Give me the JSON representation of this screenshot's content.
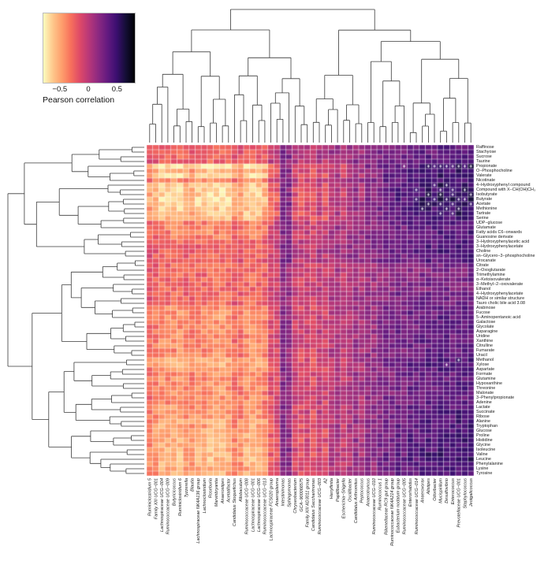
{
  "figure": {
    "legend": {
      "title": "Pearson correlation",
      "ticks": [
        "−0.5",
        "0",
        "0.5"
      ],
      "tick_values": [
        -0.5,
        0,
        0.5
      ]
    },
    "colors": {
      "background": "#ffffff",
      "dendrogram_line": "#3a3a3a",
      "label_text": "#1a1a1a",
      "significance_mark": "#ffffff"
    }
  },
  "chart_data": {
    "type": "heatmap",
    "title": "",
    "legend_label": "Pearson correlation",
    "value_range": [
      -0.8,
      0.8
    ],
    "colormap": {
      "name": "magma-reversed",
      "stops": [
        "#000004",
        "#140e36",
        "#3b0f70",
        "#641a80",
        "#8c2981",
        "#b73779",
        "#de4968",
        "#f7705c",
        "#fe9f6d",
        "#fec98d",
        "#fcfdbf"
      ]
    },
    "rows": [
      "Raffinose",
      "Stachyose",
      "Sucrose",
      "Taurine",
      "Propionate",
      "O−Phosphocholine",
      "Valerate",
      "Nicotinate",
      "4−Hydroxyphenyl compound",
      "Compound with X−CH(OH)CH₃",
      "Isobutyrate",
      "Butyrate",
      "Acetate",
      "Methionine",
      "Tartrate",
      "Serine",
      "UDP−glucose",
      "Glutamate",
      "Fatty acids C6−onwards",
      "Guanosine derivate",
      "3−Hydroxyphenylacetic acid",
      "3−Hydroxyphenylacetate",
      "Choline",
      "sn−Glycero−3−phosphocholine",
      "Urocanate",
      "Citrate",
      "2−Oxoglutarate",
      "Trimethylamine",
      "α−Ketoisovalerate",
      "3−Methyl−2−oxovalerate",
      "Ethanol",
      "4−Hydroxyphenylacetate",
      "NADH or similar structure",
      "Tauro cholic bile acid 3.08",
      "Arabinose",
      "Fucose",
      "5−Aminopentanoic acid",
      "Galactose",
      "Glycolate",
      "Asparagine",
      "Uridine",
      "Xanthine",
      "Citrulline",
      "Fumarate",
      "Uracil",
      "Methanol",
      "Xylose",
      "Aspartate",
      "Formate",
      "Glutamine",
      "Hypoxanthine",
      "Threonine",
      "Malonate",
      "3−Phenylpropionate",
      "Adenine",
      "Lactate",
      "Succinate",
      "Ribose",
      "Alanine",
      "Tryptophan",
      "Glucose",
      "Proline",
      "Histidine",
      "Glycine",
      "Isoleucine",
      "Valine",
      "Leucine",
      "Phenylalanine",
      "Lysine",
      "Tyrosine"
    ],
    "columns": [
      "Ruminiclostridium 5",
      "Family XIII UCG−001",
      "Lachnospiraceae UCG−004",
      "Ruminococcaceae UCG−009",
      "Butyricicoccus",
      "Ruminiclostridium 6",
      "Tyzzerella",
      "Blautia",
      "Lachnospiraceae NK4A136 group",
      "Lachnoclostridium",
      "Roseburia",
      "Marvinbryantia",
      "Anaerostipes",
      "Acetatifactor",
      "Candidatus Stoquefichus",
      "Allobaculum",
      "Ruminococcaceae UCG−008",
      "Lachnospiraceae UCG−001",
      "Lachnospiraceae UCG−006",
      "Ruminococcaceae UCG−013",
      "Lachnospiraceae FCS020 group",
      "Anaeroplasma",
      "Intestinimonas",
      "Sphingomonas",
      "Chryseobacterium",
      "GCA−900066575",
      "Family XIII AD3011 group",
      "Candidatus Saccharimonas",
      "Ruminococcaceae UCG−003",
      "A2",
      "Harryflintia",
      "Papillibacter",
      "Escherichia−Shigella",
      "Oscillibacter",
      "Candidatus Arthromitus",
      "Peptococcus",
      "Anaerotruncus",
      "Ruminococcaceae UCG−010",
      "Ruminococcus 1",
      "Rikenellaceae RC9 gut group",
      "Ruminococcaceae NK4A214 group",
      "Eubacterium nodatum group",
      "Ruminococcaceae UCG−005",
      "Enterorhabdus",
      "Ruminococcaceae UCG−014",
      "Anaerovorax",
      "Alistipes",
      "Odoribacter",
      "Mucispirillum",
      "Desulfovibrio",
      "Enterococcus",
      "Prevotellaceae UCG−001",
      "Staphylococcus",
      "Jeotgalicoccus"
    ],
    "row_amplitude": [
      0.7,
      0.7,
      0.75,
      0.7,
      1.5,
      1.2,
      1.4,
      1.0,
      1.3,
      1.35,
      1.4,
      1.5,
      1.5,
      1.3,
      1.3,
      1.25,
      0.95,
      0.9,
      0.9,
      0.85,
      0.8,
      0.8,
      0.85,
      0.8,
      0.75,
      0.65,
      0.6,
      0.6,
      0.65,
      0.6,
      0.6,
      0.7,
      0.7,
      0.7,
      0.9,
      0.9,
      0.95,
      0.9,
      0.85,
      0.9,
      0.85,
      0.9,
      0.9,
      0.85,
      0.9,
      1.1,
      1.1,
      1.0,
      0.9,
      0.9,
      0.9,
      0.95,
      0.9,
      0.9,
      0.9,
      1.0,
      1.0,
      1.0,
      1.1,
      1.1,
      1.15,
      1.1,
      1.15,
      1.15,
      1.2,
      1.2,
      1.2,
      1.15,
      1.1,
      1.1
    ],
    "row_offset": [
      0.05,
      0.05,
      0.05,
      0.05,
      -0.12,
      -0.05,
      -0.1,
      0,
      -0.08,
      -0.08,
      -0.08,
      -0.08,
      -0.08,
      -0.08,
      -0.08,
      -0.08,
      0,
      0,
      0,
      0,
      0.05,
      0.05,
      0.05,
      0.05,
      0.05,
      -0.03,
      -0.03,
      -0.03,
      -0.03,
      -0.03,
      -0.03,
      0,
      0,
      0,
      -0.04,
      -0.04,
      -0.04,
      -0.04,
      -0.04,
      -0.04,
      -0.04,
      -0.04,
      -0.04,
      -0.04,
      -0.04,
      -0.06,
      -0.06,
      -0.06,
      -0.04,
      -0.04,
      -0.04,
      -0.04,
      -0.04,
      -0.04,
      -0.04,
      -0.04,
      -0.04,
      -0.04,
      -0.06,
      -0.06,
      -0.06,
      -0.06,
      -0.06,
      -0.06,
      -0.06,
      -0.06,
      -0.06,
      -0.06,
      -0.06,
      -0.06
    ],
    "column_bias": [
      -0.3,
      -0.34,
      -0.42,
      -0.4,
      -0.42,
      -0.44,
      -0.38,
      -0.36,
      -0.4,
      -0.38,
      -0.46,
      -0.44,
      -0.46,
      -0.42,
      -0.3,
      -0.32,
      -0.42,
      -0.44,
      -0.4,
      -0.35,
      -0.15,
      -0.1,
      0.25,
      0.2,
      -0.05,
      -0.1,
      -0.05,
      -0.12,
      0.0,
      -0.08,
      0.05,
      0.1,
      0.0,
      0.08,
      0.15,
      0.1,
      0.2,
      0.18,
      0.25,
      0.3,
      0.28,
      0.35,
      0.3,
      0.38,
      0.35,
      0.4,
      0.42,
      0.38,
      0.45,
      0.42,
      0.4,
      0.45,
      0.42,
      0.45
    ],
    "noise": 0.22,
    "seed": 1337,
    "significance_marks": [
      {
        "row": 4,
        "cols": [
          42,
          46,
          47,
          48,
          49,
          50,
          51,
          52,
          53
        ]
      },
      {
        "row": 8,
        "cols": [
          47,
          49
        ]
      },
      {
        "row": 9,
        "cols": [
          44,
          48,
          50,
          52
        ]
      },
      {
        "row": 10,
        "cols": [
          46,
          48,
          50,
          53
        ]
      },
      {
        "row": 11,
        "cols": [
          44,
          47,
          49,
          51,
          52
        ]
      },
      {
        "row": 12,
        "cols": [
          46,
          48,
          50,
          53
        ]
      },
      {
        "row": 13,
        "cols": [
          45,
          49,
          51
        ]
      },
      {
        "row": 14,
        "cols": [
          48,
          50
        ]
      },
      {
        "row": 45,
        "cols": [
          51
        ]
      },
      {
        "row": 46,
        "cols": [
          49
        ]
      }
    ]
  }
}
